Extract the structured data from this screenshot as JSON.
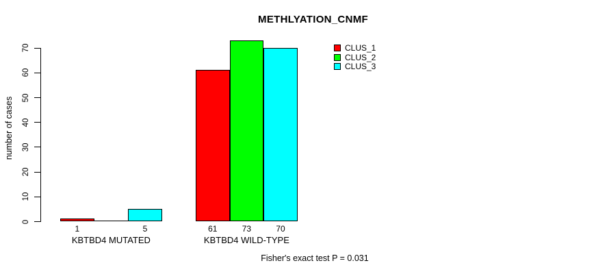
{
  "chart_data": {
    "type": "bar",
    "title": "METHLYATION_CNMF",
    "ylabel": "number of cases",
    "xlabel": "",
    "ylim": [
      0,
      70
    ],
    "yticks": [
      0,
      10,
      20,
      30,
      40,
      50,
      60,
      70
    ],
    "categories": [
      "KBTBD4 MUTATED",
      "KBTBD4 WILD-TYPE"
    ],
    "series": [
      {
        "name": "CLUS_1",
        "color": "#ff0000",
        "values": [
          1,
          61
        ]
      },
      {
        "name": "CLUS_2",
        "color": "#00ff00",
        "values": [
          0,
          73
        ]
      },
      {
        "name": "CLUS_3",
        "color": "#00ffff",
        "values": [
          5,
          70
        ]
      }
    ],
    "bar_value_labels": [
      [
        "1",
        "",
        "5"
      ],
      [
        "61",
        "73",
        "70"
      ]
    ],
    "legend": {
      "position": "top-right",
      "entries": [
        "CLUS_1",
        "CLUS_2",
        "CLUS_3"
      ]
    },
    "annotation": "Fisher's exact test P = 0.031",
    "grid": false,
    "background": "#ffffff",
    "axis_color": "#000000",
    "text_color": "#000000"
  }
}
